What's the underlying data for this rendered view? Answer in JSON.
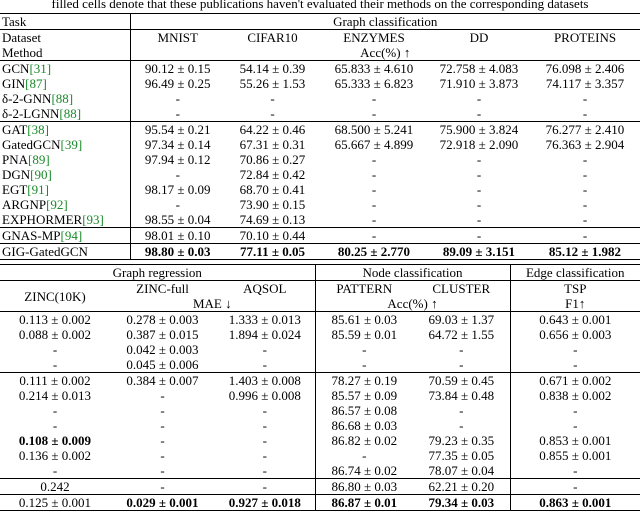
{
  "caption": "filled cells denote that these publications haven't evaluated their methods on the corresponding datasets",
  "top_table": {
    "header": [
      "Task",
      "Graph classification"
    ],
    "datasets": [
      "Dataset",
      "MNIST",
      "CIFAR10",
      "ENZYMES",
      "DD",
      "PROTEINS"
    ],
    "metric_row": [
      "Method",
      "Acc(%) ↑"
    ],
    "rows": [
      {
        "method": "GCN",
        "ref": "[31]",
        "cells": [
          "90.12 ± 0.15",
          "54.14 ± 0.39",
          "65.833 ± 4.610",
          "72.758 ± 4.083",
          "76.098 ± 2.406"
        ]
      },
      {
        "method": "GIN",
        "ref": "[87]",
        "cells": [
          "96.49 ± 0.25",
          "55.26 ± 1.53",
          "65.333 ± 6.823",
          "71.910 ± 3.873",
          "74.117 ± 3.357"
        ]
      },
      {
        "method": "δ-2-GNN",
        "ref": "[88]",
        "cells": [
          "-",
          "-",
          "-",
          "-",
          "-"
        ]
      },
      {
        "method": "δ-2-LGNN",
        "ref": "[88]",
        "cells": [
          "-",
          "-",
          "-",
          "-",
          "-"
        ]
      },
      {
        "method": "GAT",
        "ref": "[38]",
        "cells": [
          "95.54 ± 0.21",
          "64.22 ± 0.46",
          "68.500 ± 5.241",
          "75.900 ± 3.824",
          "76.277 ± 2.410"
        ]
      },
      {
        "method": "GatedGCN",
        "ref": "[39]",
        "cells": [
          "97.34 ± 0.14",
          "67.31 ± 0.31",
          "65.667 ± 4.899",
          "72.918 ± 2.090",
          "76.363 ± 2.904"
        ]
      },
      {
        "method": "PNA",
        "ref": "[89]",
        "cells": [
          "97.94 ± 0.12",
          "70.86 ± 0.27",
          "-",
          "-",
          "-"
        ]
      },
      {
        "method": "DGN",
        "ref": "[90]",
        "cells": [
          "-",
          "72.84 ± 0.42",
          "-",
          "-",
          "-"
        ]
      },
      {
        "method": "EGT",
        "ref": "[91]",
        "cells": [
          "98.17 ± 0.09",
          "68.70 ± 0.41",
          "-",
          "-",
          "-"
        ]
      },
      {
        "method": "ARGNP",
        "ref": "[92]",
        "cells": [
          "-",
          "73.90 ± 0.15",
          "-",
          "-",
          "-"
        ]
      },
      {
        "method": "EXPHORMER",
        "ref": "[93]",
        "cells": [
          "98.55 ± 0.04",
          "74.69 ± 0.13",
          "-",
          "-",
          "-"
        ]
      },
      {
        "method": "GNAS-MP",
        "ref": "[94]",
        "cells": [
          "98.01 ± 0.10",
          "70.10 ± 0.44",
          "-",
          "-",
          "-"
        ]
      },
      {
        "method": "GIG-GatedGCN",
        "cells": [
          "98.80 ± 0.03",
          "77.11 ± 0.05",
          "80.25 ± 2.770",
          "89.09 ± 3.151",
          "85.12 ± 1.982"
        ]
      }
    ]
  },
  "bottom_table": {
    "tasks": [
      "Graph regression",
      "Node classification",
      "Edge classification"
    ],
    "datasets": [
      "ZINC(10K)",
      "ZINC-full",
      "AQSOL",
      "PATTERN",
      "CLUSTER",
      "TSP"
    ],
    "metrics": [
      "MAE ↓",
      "Acc(%) ↑",
      "F1↑"
    ],
    "rows": [
      [
        "0.113 ± 0.002",
        "0.278 ± 0.003",
        "1.333 ± 0.013",
        "85.61 ± 0.03",
        "69.03 ± 1.37",
        "0.643 ± 0.001"
      ],
      [
        "0.088 ± 0.002",
        "0.387 ± 0.015",
        "1.894 ± 0.024",
        "85.59 ± 0.01",
        "64.72 ± 1.55",
        "0.656 ± 0.003"
      ],
      [
        "-",
        "0.042 ± 0.003",
        "-",
        "-",
        "-",
        "-"
      ],
      [
        "-",
        "0.045 ± 0.006",
        "-",
        "-",
        "-",
        "-"
      ],
      [
        "0.111 ± 0.002",
        "0.384 ± 0.007",
        "1.403 ± 0.008",
        "78.27 ± 0.19",
        "70.59 ± 0.45",
        "0.671 ± 0.002"
      ],
      [
        "0.214 ± 0.013",
        "-",
        "0.996 ± 0.008",
        "85.57 ± 0.09",
        "73.84 ± 0.48",
        "0.838 ± 0.002"
      ],
      [
        "-",
        "-",
        "-",
        "86.57 ± 0.08",
        "-",
        "-"
      ],
      [
        "-",
        "-",
        "-",
        "86.68 ± 0.03",
        "-",
        "-"
      ],
      [
        "0.108 ± 0.009",
        "-",
        "-",
        "86.82 ± 0.02",
        "79.23 ± 0.35",
        "0.853 ± 0.001"
      ],
      [
        "0.136 ± 0.002",
        "-",
        "-",
        "-",
        "77.35 ± 0.05",
        "0.855 ± 0.001"
      ],
      [
        "-",
        "-",
        "-",
        "86.74 ± 0.02",
        "78.07 ± 0.04",
        "-"
      ],
      [
        "0.242",
        "-",
        "-",
        "86.80 ± 0.03",
        "62.21 ± 0.20",
        "-"
      ],
      [
        "0.125 ± 0.001",
        "0.029 ± 0.001",
        "0.927 ± 0.018",
        "86.87 ± 0.01",
        "79.34 ± 0.03",
        "0.863 ± 0.001"
      ]
    ]
  }
}
